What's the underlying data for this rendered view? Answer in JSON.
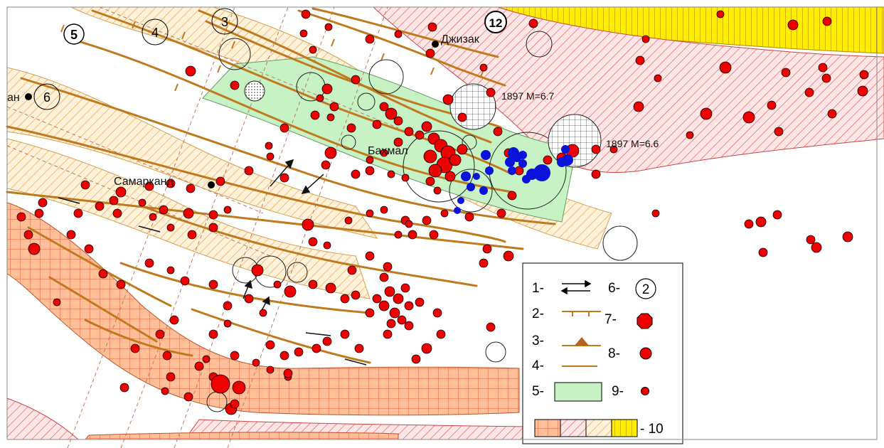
{
  "map": {
    "cities": [
      {
        "id": "dzhizak",
        "label": "Джизак"
      },
      {
        "id": "samarkand",
        "label": "Самарканд"
      },
      {
        "id": "an",
        "label": "ан"
      }
    ],
    "place_labels": [
      {
        "id": "bakhmal",
        "label": "Бахмал"
      }
    ],
    "zone_numbers": [
      "5",
      "4",
      "3",
      "6",
      "12"
    ],
    "historic_quakes": [
      {
        "id": "q1",
        "label": "1897 M=6.7"
      },
      {
        "id": "q2",
        "label": "1897 M=6.6"
      }
    ]
  },
  "legend": {
    "items": [
      {
        "num": "1-",
        "symbol": "strike-slip-arrows-icon"
      },
      {
        "num": "2-",
        "symbol": "normal-fault-icon"
      },
      {
        "num": "3-",
        "symbol": "thrust-fault-icon"
      },
      {
        "num": "4-",
        "symbol": "fault-line-icon"
      },
      {
        "num": "5-",
        "symbol": "green-zone-icon"
      },
      {
        "num": "6-",
        "symbol": "zone-number-icon",
        "value": "2"
      },
      {
        "num": "7-",
        "symbol": "large-epicenter-icon"
      },
      {
        "num": "8-",
        "symbol": "medium-epicenter-icon"
      },
      {
        "num": "9-",
        "symbol": "small-epicenter-icon"
      }
    ],
    "zones_label": "- 10"
  },
  "colors": {
    "fault": "#c07a1e",
    "epicenter": "#ee0000",
    "blue_epicenter": "#0a14d8",
    "green_zone": "#c6f2c4",
    "hatch_pink": "#e05a5a",
    "hatch_orange": "#e8a050",
    "grid_orange": "#ffb58a",
    "yellow": "#ffee00"
  }
}
